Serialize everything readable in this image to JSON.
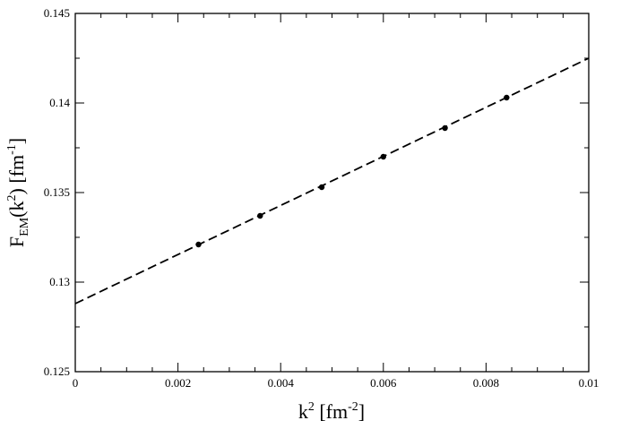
{
  "chart_data": {
    "type": "scatter",
    "x_axis": {
      "label_main": "k",
      "label_sup": "2",
      "label_unit_prefix": " [fm",
      "label_unit_sup": "-2",
      "label_unit_suffix": "]",
      "lim": [
        0,
        0.01
      ],
      "ticks": [
        0,
        0.002,
        0.004,
        0.006,
        0.008,
        0.01
      ],
      "tick_labels": [
        "0",
        "0.002",
        "0.004",
        "0.006",
        "0.008",
        "0.01"
      ],
      "minor_step": 0.0005
    },
    "y_axis": {
      "label_main": "F",
      "label_sub": "EM",
      "label_paren_open": "(k",
      "label_sup": "2",
      "label_paren_close": ") [fm",
      "label_unit_sup": "-1",
      "label_unit_suffix": "]",
      "lim": [
        0.125,
        0.145
      ],
      "ticks": [
        0.125,
        0.13,
        0.135,
        0.14,
        0.145
      ],
      "tick_labels": [
        "0.125",
        "0.13",
        "0.135",
        "0.14",
        "0.145"
      ],
      "minor_step": 0.0025
    },
    "series": [
      {
        "kind": "points",
        "color": "#000000",
        "x": [
          0.0024,
          0.0036,
          0.0048,
          0.006,
          0.0072,
          0.0084
        ],
        "y": [
          0.1321,
          0.1337,
          0.1353,
          0.137,
          0.1386,
          0.1403
        ]
      },
      {
        "kind": "fit-line",
        "style": "dashed",
        "color": "#000000",
        "x": [
          0,
          0.01
        ],
        "y": [
          0.1288,
          0.1425
        ]
      }
    ],
    "grid": false,
    "legend": "none"
  }
}
